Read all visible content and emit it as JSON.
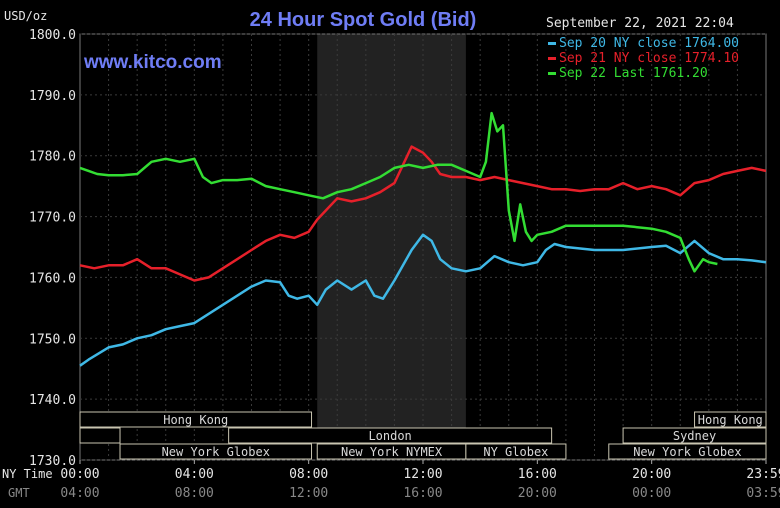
{
  "chart_data": {
    "type": "line",
    "title": "24 Hour Spot Gold (Bid)",
    "watermark": "www.kitco.com",
    "unit": "USD/oz",
    "timestamp": "September 22, 2021 22:04",
    "ylim": [
      1730,
      1800
    ],
    "y_ticks": [
      "1800.0",
      "1790.0",
      "1780.0",
      "1770.0",
      "1760.0",
      "1750.0",
      "1740.0",
      "1730.0"
    ],
    "x_range_hours": [
      0,
      24
    ],
    "ny_time_label": "NY Time",
    "gmt_label": "GMT",
    "ny_time_ticks": [
      "00:00",
      "04:00",
      "08:00",
      "12:00",
      "16:00",
      "20:00",
      "23:59"
    ],
    "gmt_ticks": [
      "04:00",
      "08:00",
      "12:00",
      "16:00",
      "20:00",
      "00:00",
      "03:59"
    ],
    "tick_hours": [
      0,
      4,
      8,
      12,
      16,
      20,
      24
    ],
    "shaded_region_hours": [
      8.3,
      13.5
    ],
    "series": [
      {
        "name": "Sep 20 NY close 1764.00",
        "color": "#3fb8e6",
        "points": [
          [
            0,
            1745.5
          ],
          [
            0.3,
            1746.5
          ],
          [
            1,
            1748.5
          ],
          [
            1.5,
            1749
          ],
          [
            2,
            1750
          ],
          [
            2.5,
            1750.5
          ],
          [
            3,
            1751.5
          ],
          [
            3.5,
            1752
          ],
          [
            4,
            1752.5
          ],
          [
            4.5,
            1754
          ],
          [
            5,
            1755.5
          ],
          [
            5.5,
            1757
          ],
          [
            6,
            1758.5
          ],
          [
            6.5,
            1759.5
          ],
          [
            7,
            1759.2
          ],
          [
            7.3,
            1757
          ],
          [
            7.6,
            1756.5
          ],
          [
            8,
            1757
          ],
          [
            8.3,
            1755.5
          ],
          [
            8.6,
            1758
          ],
          [
            9,
            1759.5
          ],
          [
            9.5,
            1758
          ],
          [
            10,
            1759.5
          ],
          [
            10.3,
            1757
          ],
          [
            10.6,
            1756.5
          ],
          [
            11,
            1759.5
          ],
          [
            11.3,
            1762
          ],
          [
            11.6,
            1764.5
          ],
          [
            12,
            1767
          ],
          [
            12.3,
            1766
          ],
          [
            12.6,
            1763
          ],
          [
            13,
            1761.5
          ],
          [
            13.5,
            1761
          ],
          [
            14,
            1761.5
          ],
          [
            14.5,
            1763.5
          ],
          [
            15,
            1762.5
          ],
          [
            15.5,
            1762
          ],
          [
            16,
            1762.5
          ],
          [
            16.3,
            1764.5
          ],
          [
            16.6,
            1765.5
          ],
          [
            17,
            1765
          ],
          [
            18,
            1764.5
          ],
          [
            19,
            1764.5
          ],
          [
            20,
            1765
          ],
          [
            20.5,
            1765.2
          ],
          [
            21,
            1764
          ],
          [
            21.5,
            1766
          ],
          [
            22,
            1764
          ],
          [
            22.5,
            1763
          ],
          [
            23,
            1763
          ],
          [
            23.5,
            1762.8
          ],
          [
            24,
            1762.5
          ]
        ]
      },
      {
        "name": "Sep 21 NY close 1774.10",
        "color": "#e6202a",
        "points": [
          [
            0,
            1762
          ],
          [
            0.5,
            1761.5
          ],
          [
            1,
            1762
          ],
          [
            1.5,
            1762
          ],
          [
            2,
            1763
          ],
          [
            2.5,
            1761.5
          ],
          [
            3,
            1761.5
          ],
          [
            3.5,
            1760.5
          ],
          [
            4,
            1759.5
          ],
          [
            4.5,
            1760
          ],
          [
            5,
            1761.5
          ],
          [
            5.5,
            1763
          ],
          [
            6,
            1764.5
          ],
          [
            6.5,
            1766
          ],
          [
            7,
            1767
          ],
          [
            7.5,
            1766.5
          ],
          [
            8,
            1767.5
          ],
          [
            8.3,
            1769.5
          ],
          [
            8.6,
            1771
          ],
          [
            9,
            1773
          ],
          [
            9.5,
            1772.5
          ],
          [
            10,
            1773
          ],
          [
            10.5,
            1774
          ],
          [
            11,
            1775.5
          ],
          [
            11.3,
            1778.5
          ],
          [
            11.6,
            1781.5
          ],
          [
            12,
            1780.5
          ],
          [
            12.3,
            1779
          ],
          [
            12.6,
            1777
          ],
          [
            13,
            1776.5
          ],
          [
            13.5,
            1776.5
          ],
          [
            14,
            1776
          ],
          [
            14.5,
            1776.5
          ],
          [
            15,
            1776
          ],
          [
            15.5,
            1775.5
          ],
          [
            16,
            1775
          ],
          [
            16.5,
            1774.5
          ],
          [
            17,
            1774.5
          ],
          [
            17.5,
            1774.2
          ],
          [
            18,
            1774.5
          ],
          [
            18.5,
            1774.5
          ],
          [
            19,
            1775.5
          ],
          [
            19.5,
            1774.5
          ],
          [
            20,
            1775
          ],
          [
            20.5,
            1774.5
          ],
          [
            21,
            1773.5
          ],
          [
            21.5,
            1775.5
          ],
          [
            22,
            1776
          ],
          [
            22.5,
            1777
          ],
          [
            23,
            1777.5
          ],
          [
            23.5,
            1778
          ],
          [
            24,
            1777.5
          ]
        ]
      },
      {
        "name": "Sep 22 Last 1761.20",
        "color": "#33dd33",
        "points": [
          [
            0,
            1778
          ],
          [
            0.3,
            1777.5
          ],
          [
            0.6,
            1777
          ],
          [
            1,
            1776.8
          ],
          [
            1.5,
            1776.8
          ],
          [
            2,
            1777
          ],
          [
            2.5,
            1779
          ],
          [
            3,
            1779.5
          ],
          [
            3.5,
            1779
          ],
          [
            4,
            1779.5
          ],
          [
            4.3,
            1776.5
          ],
          [
            4.6,
            1775.5
          ],
          [
            5,
            1776
          ],
          [
            5.5,
            1776
          ],
          [
            6,
            1776.2
          ],
          [
            6.5,
            1775
          ],
          [
            7,
            1774.5
          ],
          [
            7.5,
            1774
          ],
          [
            8,
            1773.5
          ],
          [
            8.5,
            1773
          ],
          [
            9,
            1774
          ],
          [
            9.5,
            1774.5
          ],
          [
            10,
            1775.5
          ],
          [
            10.5,
            1776.5
          ],
          [
            11,
            1778
          ],
          [
            11.5,
            1778.5
          ],
          [
            12,
            1778
          ],
          [
            12.5,
            1778.5
          ],
          [
            13,
            1778.5
          ],
          [
            13.5,
            1777.5
          ],
          [
            14,
            1776.5
          ],
          [
            14.2,
            1779
          ],
          [
            14.4,
            1787
          ],
          [
            14.6,
            1784
          ],
          [
            14.8,
            1785
          ],
          [
            14.9,
            1778
          ],
          [
            15,
            1771
          ],
          [
            15.2,
            1766
          ],
          [
            15.4,
            1772
          ],
          [
            15.6,
            1767.5
          ],
          [
            15.8,
            1766
          ],
          [
            16,
            1767
          ],
          [
            16.5,
            1767.5
          ],
          [
            17,
            1768.5
          ],
          [
            18,
            1768.5
          ],
          [
            19,
            1768.5
          ],
          [
            20,
            1768
          ],
          [
            20.5,
            1767.5
          ],
          [
            21,
            1766.5
          ],
          [
            21.3,
            1763
          ],
          [
            21.5,
            1761
          ],
          [
            21.8,
            1763
          ],
          [
            22,
            1762.5
          ],
          [
            22.3,
            1762.2
          ]
        ]
      }
    ],
    "session_bars": [
      {
        "label": "Hong Kong",
        "row": 0,
        "start": 0,
        "end": 8.1
      },
      {
        "label": "",
        "row": 1,
        "start": 0,
        "end": 1.4
      },
      {
        "label": "London",
        "row": 1,
        "start": 5.2,
        "end": 16.5
      },
      {
        "label": "New York Globex",
        "row": 2,
        "start": 1.4,
        "end": 8.1
      },
      {
        "label": "New York NYMEX",
        "row": 2,
        "start": 8.3,
        "end": 13.5
      },
      {
        "label": "NY Globex",
        "row": 2,
        "start": 13.5,
        "end": 17.0
      },
      {
        "label": "Hong Kong",
        "row": 0,
        "start": 21.5,
        "end": 24
      },
      {
        "label": "Sydney",
        "row": 1,
        "start": 19.0,
        "end": 24
      },
      {
        "label": "New York Globex",
        "row": 2,
        "start": 18.5,
        "end": 24
      }
    ],
    "grid": true,
    "legend_position": "top-right"
  }
}
